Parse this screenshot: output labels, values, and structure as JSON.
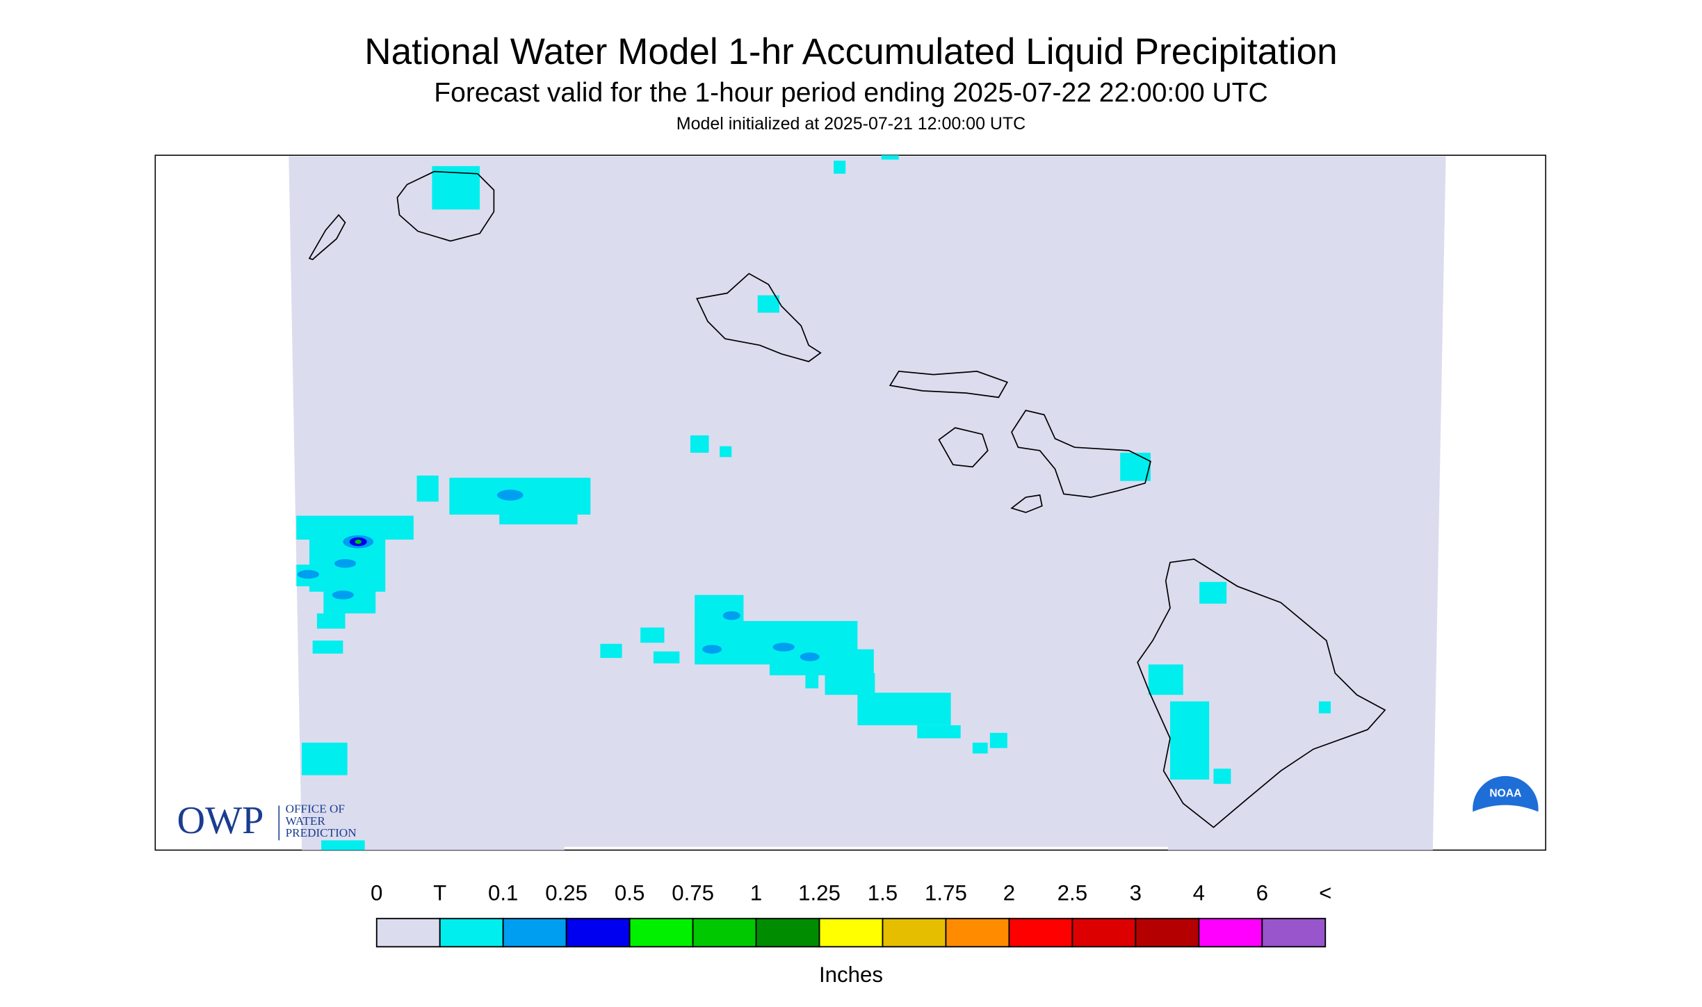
{
  "header": {
    "title": "National Water Model 1-hr Accumulated Liquid Precipitation",
    "subtitle": "Forecast valid for the 1-hour period ending 2025-07-22 22:00:00 UTC",
    "init": "Model initialized at 2025-07-21 12:00:00 UTC"
  },
  "logos": {
    "owp": "OWP",
    "owp_lines": [
      "OFFICE OF",
      "WATER",
      "PREDICTION"
    ],
    "noaa": "NOAA"
  },
  "legend": {
    "labels": [
      "0",
      "T",
      "0.1",
      "0.25",
      "0.5",
      "0.75",
      "1",
      "1.25",
      "1.5",
      "1.75",
      "2",
      "2.5",
      "3",
      "4",
      "6",
      "<"
    ],
    "colors": [
      "#dcdcef",
      "#00eeee",
      "#009ef0",
      "#0000f0",
      "#00f000",
      "#00c800",
      "#008c00",
      "#ffff00",
      "#e6be00",
      "#ff8c00",
      "#ff0000",
      "#dc0000",
      "#b40000",
      "#ff00ff",
      "#9955cc"
    ],
    "units": "Inches"
  }
}
